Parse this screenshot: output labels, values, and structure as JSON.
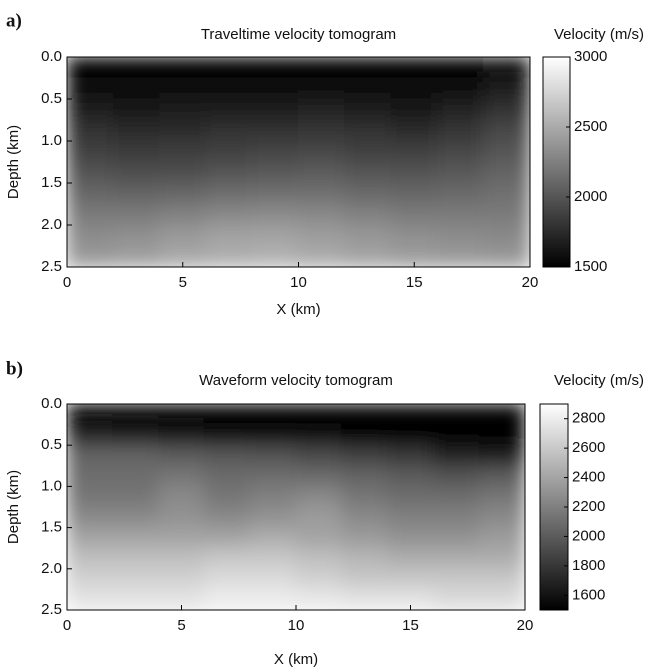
{
  "chart_data": [
    {
      "type": "heatmap",
      "label": "a)",
      "title": "Traveltime velocity tomogram",
      "xlabel": "X (km)",
      "ylabel": "Depth (km)",
      "colorbar_label": "Velocity (m/s)",
      "colormap": "gray",
      "xlim": [
        0,
        20
      ],
      "xticks": [
        0,
        5,
        10,
        15,
        20
      ],
      "ylim": [
        2.5,
        0
      ],
      "yticks": [
        {
          "value": 0,
          "label": "0.0"
        },
        0.5,
        {
          "value": 1,
          "label": "1.0"
        },
        1.5,
        {
          "value": 2,
          "label": "2.0"
        },
        2.5
      ],
      "clim": [
        1500,
        3000
      ],
      "cticks": [
        1500,
        2000,
        2500,
        3000
      ],
      "x": [
        1,
        3,
        5,
        7,
        9,
        11,
        13,
        15,
        17,
        19
      ],
      "y": [
        0.125,
        0.375,
        0.625,
        0.875,
        1.125,
        1.375,
        1.625,
        1.875,
        2.125,
        2.375
      ],
      "z": [
        [
          1530,
          1520,
          1520,
          1520,
          1520,
          1520,
          1520,
          1520,
          1520,
          1560
        ],
        [
          1580,
          1560,
          1560,
          1560,
          1560,
          1570,
          1560,
          1550,
          1580,
          1650
        ],
        [
          1680,
          1640,
          1650,
          1660,
          1680,
          1700,
          1660,
          1640,
          1700,
          1800
        ],
        [
          1780,
          1740,
          1760,
          1780,
          1800,
          1820,
          1780,
          1760,
          1820,
          1920
        ],
        [
          1880,
          1840,
          1860,
          1880,
          1900,
          1920,
          1880,
          1880,
          1920,
          2000
        ],
        [
          1980,
          1950,
          1960,
          2000,
          2020,
          2040,
          2000,
          1980,
          2020,
          2080
        ],
        [
          2100,
          2080,
          2100,
          2140,
          2160,
          2160,
          2120,
          2100,
          2120,
          2150
        ],
        [
          2220,
          2220,
          2260,
          2300,
          2320,
          2300,
          2260,
          2220,
          2220,
          2220
        ],
        [
          2320,
          2340,
          2400,
          2450,
          2460,
          2420,
          2380,
          2340,
          2320,
          2300
        ],
        [
          2400,
          2430,
          2480,
          2520,
          2540,
          2500,
          2460,
          2420,
          2400,
          2380
        ]
      ]
    },
    {
      "type": "heatmap",
      "label": "b)",
      "title": "Waveform velocity tomogram",
      "xlabel": "X (km)",
      "ylabel": "Depth (km)",
      "colorbar_label": "Velocity (m/s)",
      "colormap": "gray",
      "xlim": [
        0,
        20
      ],
      "xticks": [
        0,
        5,
        10,
        15,
        20
      ],
      "ylim": [
        2.5,
        0
      ],
      "yticks": [
        {
          "value": 0,
          "label": "0.0"
        },
        0.5,
        {
          "value": 1,
          "label": "1.0"
        },
        1.5,
        {
          "value": 2,
          "label": "2.0"
        },
        2.5
      ],
      "clim": [
        1500,
        2900
      ],
      "cticks": [
        1600,
        1800,
        2000,
        2200,
        2400,
        2600,
        2800
      ],
      "x": [
        1,
        3,
        5,
        7,
        9,
        11,
        13,
        15,
        17,
        19
      ],
      "y": [
        0.125,
        0.375,
        0.625,
        0.875,
        1.125,
        1.375,
        1.625,
        1.875,
        2.125,
        2.375
      ],
      "z": [
        [
          1500,
          1500,
          1500,
          1500,
          1500,
          1500,
          1500,
          1500,
          1500,
          1500
        ],
        [
          1700,
          1650,
          1600,
          1580,
          1560,
          1540,
          1530,
          1520,
          1510,
          1500
        ],
        [
          2050,
          2050,
          2000,
          1980,
          1950,
          1900,
          1850,
          1800,
          1700,
          1650
        ],
        [
          2100,
          2100,
          2150,
          2080,
          2100,
          2080,
          2050,
          2000,
          1950,
          2000
        ],
        [
          2150,
          2150,
          2250,
          2150,
          2200,
          2250,
          2150,
          2100,
          2100,
          2150
        ],
        [
          2250,
          2250,
          2300,
          2250,
          2300,
          2350,
          2250,
          2200,
          2200,
          2250
        ],
        [
          2400,
          2400,
          2400,
          2400,
          2450,
          2400,
          2350,
          2300,
          2300,
          2350
        ],
        [
          2550,
          2550,
          2550,
          2600,
          2600,
          2550,
          2500,
          2450,
          2450,
          2450
        ],
        [
          2650,
          2650,
          2650,
          2700,
          2700,
          2650,
          2600,
          2600,
          2600,
          2600
        ],
        [
          2750,
          2750,
          2750,
          2800,
          2800,
          2780,
          2750,
          2750,
          2700,
          2700
        ]
      ]
    }
  ]
}
